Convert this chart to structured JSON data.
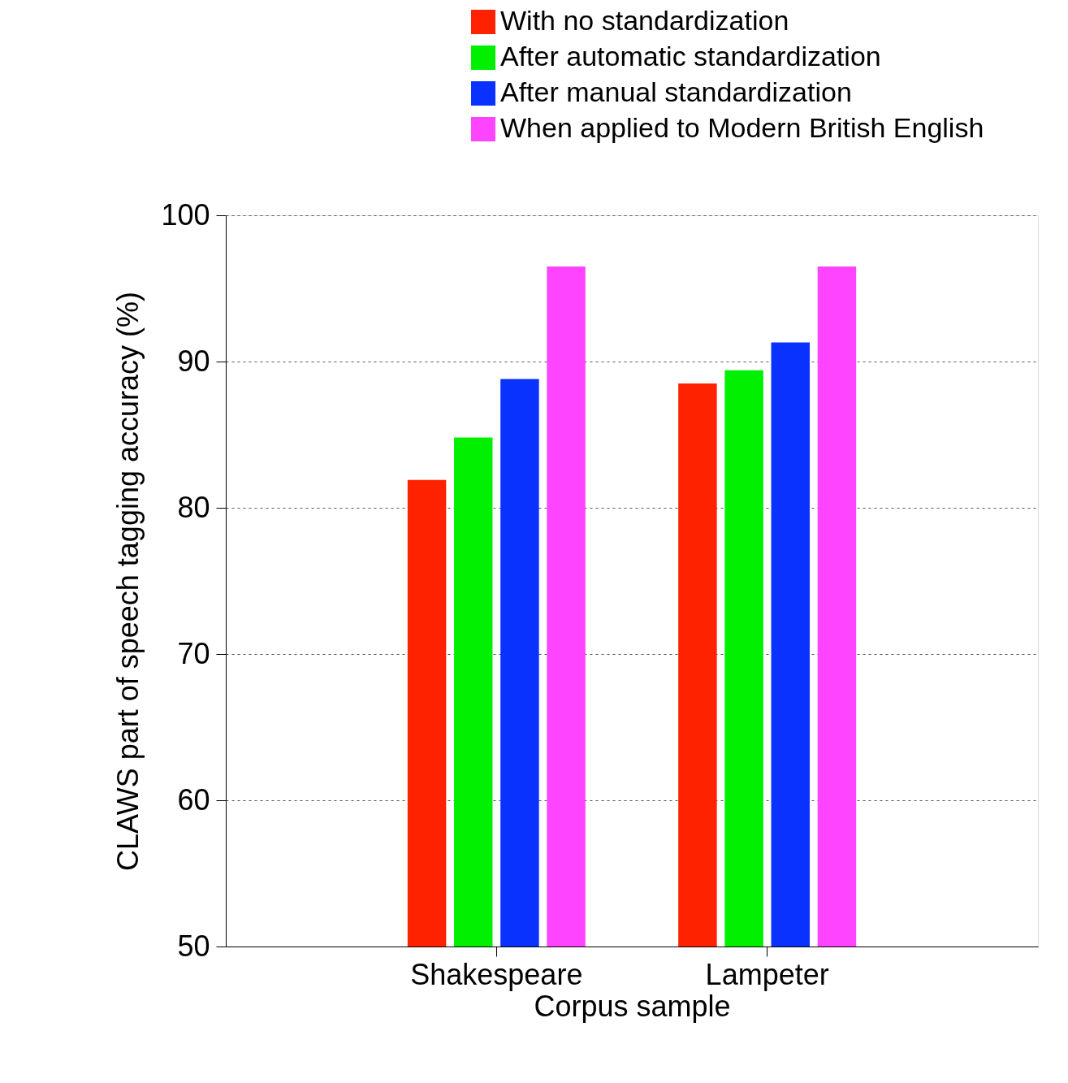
{
  "chart_data": {
    "type": "bar",
    "xlabel": "Corpus sample",
    "ylabel": "CLAWS part of speech tagging accuracy (%)",
    "categories": [
      "Shakespeare",
      "Lampeter"
    ],
    "series": [
      {
        "name": "With no standardization",
        "color": "#ff2200",
        "values": [
          81.9,
          88.5
        ]
      },
      {
        "name": "After automatic standardization",
        "color": "#00f000",
        "values": [
          84.8,
          89.4
        ]
      },
      {
        "name": "After manual standardization",
        "color": "#0a32ff",
        "values": [
          88.8,
          91.3
        ]
      },
      {
        "name": "When applied to Modern British English",
        "color": "#ff44ff",
        "values": [
          96.5,
          96.5
        ]
      }
    ],
    "ylim": [
      50,
      100
    ],
    "yticks": [
      50,
      60,
      70,
      80,
      90,
      100
    ],
    "grid": "y",
    "legend": "top right"
  }
}
